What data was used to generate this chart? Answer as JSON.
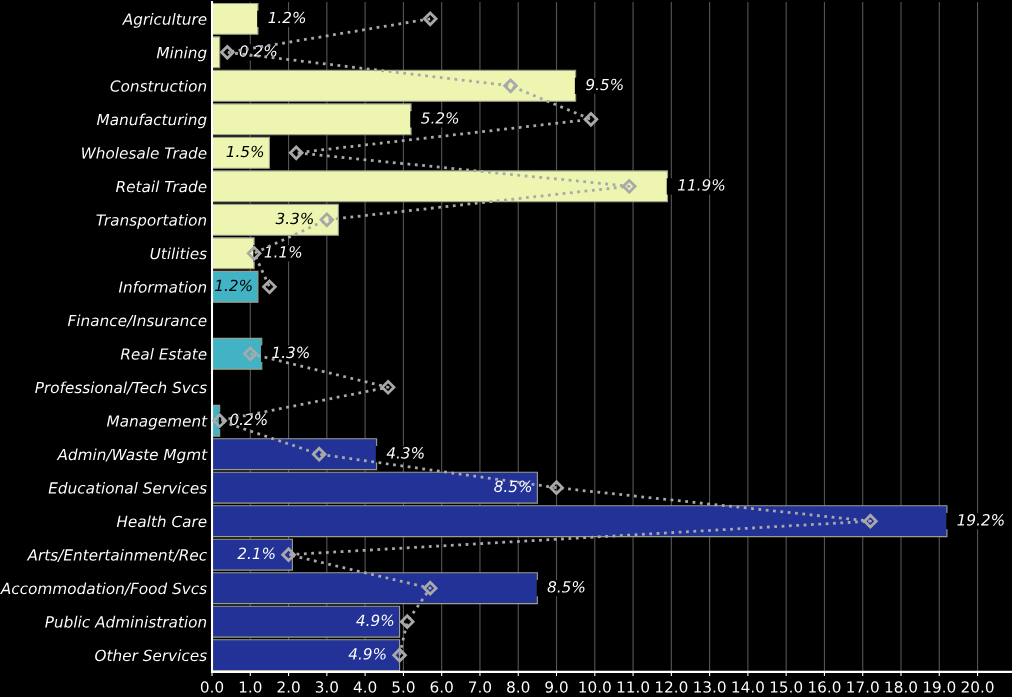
{
  "chart_data": {
    "type": "bar",
    "orientation": "horizontal",
    "categories": [
      "Agriculture",
      "Mining",
      "Construction",
      "Manufacturing",
      "Wholesale Trade",
      "Retail Trade",
      "Transportation",
      "Utilities",
      "Information",
      "Finance/Insurance",
      "Real Estate",
      "Professional/Tech Svcs",
      "Management",
      "Admin/Waste Mgmt",
      "Educational Services",
      "Health Care",
      "Arts/Entertainment/Rec",
      "Accommodation/Food Svcs",
      "Public Administration",
      "Other Services"
    ],
    "series": [
      {
        "colors": [
          "#eef5b0",
          "#eef5b0",
          "#eef5b0",
          "#eef5b0",
          "#eef5b0",
          "#eef5b0",
          "#eef5b0",
          "#eef5b0",
          "#42b3c4",
          "#42b3c4",
          "#42b3c4",
          "#42b3c4",
          "#42b3c4",
          "#233296",
          "#233296",
          "#233296",
          "#233296",
          "#233296",
          "#233296",
          "#233296"
        ],
        "values": [
          1.2,
          0.2,
          9.5,
          5.2,
          1.5,
          11.9,
          3.3,
          1.1,
          1.2,
          null,
          1.3,
          null,
          0.2,
          4.3,
          8.5,
          19.2,
          2.1,
          8.5,
          4.9,
          4.9
        ],
        "value_labels": [
          "1.2%",
          "0.2%",
          "9.5%",
          "5.2%",
          "1.5%",
          "11.9%",
          "3.3%",
          "1.1%",
          "1.2%",
          null,
          "1.3%",
          null,
          "0.2%",
          "4.3%",
          "8.5%",
          "19.2%",
          "2.1%",
          "8.5%",
          "4.9%",
          "4.9%"
        ]
      },
      {
        "type": "line",
        "color": "#a9a9a9",
        "marker": "diamond",
        "line_style": "dotted",
        "values": [
          5.7,
          0.4,
          7.8,
          9.9,
          2.2,
          10.9,
          3.0,
          1.1,
          1.5,
          null,
          1.0,
          4.6,
          0.2,
          2.8,
          9.0,
          17.2,
          2.0,
          5.7,
          5.1,
          4.9
        ]
      }
    ],
    "xlim": [
      0,
      20.9
    ],
    "xticks": [
      {
        "value": 0,
        "label": "0.0"
      },
      {
        "value": 1,
        "label": "1.0"
      },
      {
        "value": 2,
        "label": "2.0"
      },
      {
        "value": 3,
        "label": "3.0"
      },
      {
        "value": 4,
        "label": "4.0"
      },
      {
        "value": 5,
        "label": "5.0"
      },
      {
        "value": 6,
        "label": "6.0"
      },
      {
        "value": 7,
        "label": "7.0"
      },
      {
        "value": 8,
        "label": "8.0"
      },
      {
        "value": 9,
        "label": "9.0"
      },
      {
        "value": 10,
        "label": "10.0"
      },
      {
        "value": 11,
        "label": "11.0"
      },
      {
        "value": 12,
        "label": "12.0"
      },
      {
        "value": 13,
        "label": "13.0"
      },
      {
        "value": 14,
        "label": "14.0"
      },
      {
        "value": 15,
        "label": "15.0"
      },
      {
        "value": 16,
        "label": "16.0"
      },
      {
        "value": 17,
        "label": "17.0"
      },
      {
        "value": 18,
        "label": "18.0"
      },
      {
        "value": 19,
        "label": "19.0"
      },
      {
        "value": 20,
        "label": "20.0"
      }
    ],
    "grid": "x"
  }
}
